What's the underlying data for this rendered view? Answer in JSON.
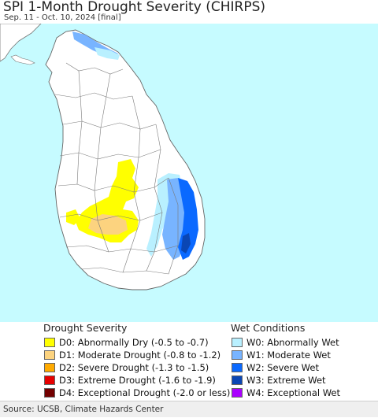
{
  "title": "SPI 1-Month Drought Severity (CHIRPS)",
  "subtitle": "Sep. 11 - Oct. 10, 2024 [final]",
  "map": {
    "colors": {
      "ocean": "#c6fbff",
      "land": "#ffffff",
      "border": "#777777"
    }
  },
  "legend": {
    "drought_title": "Drought Severity",
    "drought_items": [
      {
        "label": "D0: Abnormally Dry (-0.5 to -0.7)",
        "color": "#ffff00"
      },
      {
        "label": "D1: Moderate Drought (-0.8 to -1.2)",
        "color": "#fcd37f"
      },
      {
        "label": "D2: Severe Drought (-1.3 to -1.5)",
        "color": "#ffaa00"
      },
      {
        "label": "D3: Extreme Drought (-1.6 to -1.9)",
        "color": "#e60000"
      },
      {
        "label": "D4: Exceptional Drought (-2.0 or less)",
        "color": "#730000"
      }
    ],
    "wet_title": "Wet Conditions",
    "wet_items": [
      {
        "label": "W0: Abnormally Wet",
        "color": "#b9f0ff"
      },
      {
        "label": "W1: Moderate Wet",
        "color": "#78b4ff"
      },
      {
        "label": "W2: Severe Wet",
        "color": "#0a69ff"
      },
      {
        "label": "W3: Extreme Wet",
        "color": "#0a46b4"
      },
      {
        "label": "W4: Exceptional Wet",
        "color": "#aa00ff"
      }
    ]
  },
  "source": "Source: UCSB, Climate Hazards Center"
}
